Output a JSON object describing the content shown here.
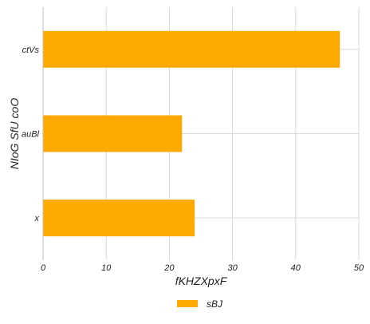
{
  "chart_data": {
    "type": "bar",
    "orientation": "horizontal",
    "categories": [
      "ctVs",
      "auBl",
      "x"
    ],
    "series": [
      {
        "name": "sBJ",
        "values": [
          47,
          22,
          24
        ],
        "color": "#FFAA00"
      }
    ],
    "xlabel": "fKHZXpxF",
    "ylabel": "NIoG SfU coO",
    "xlim": [
      0,
      50
    ],
    "xticks": [
      "0",
      "10",
      "20",
      "30",
      "40",
      "50"
    ],
    "grid": true,
    "legend_position": "bottom-center"
  }
}
